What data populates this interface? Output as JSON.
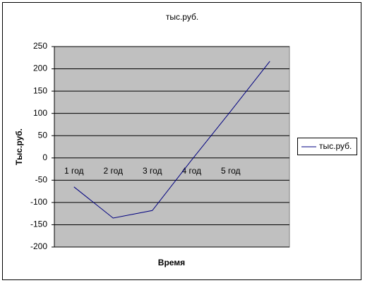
{
  "chart_data": {
    "type": "line",
    "title": "тыс.руб.",
    "x_label": "Время",
    "y_label": "Тыс.руб.",
    "categories": [
      "1 год",
      "2 год",
      "3 год",
      "4 год",
      "5 год",
      null
    ],
    "series": [
      {
        "name": "тыс.руб.",
        "color": "#000080",
        "values": [
          -65,
          -135,
          -118,
          -5,
          105,
          217
        ]
      }
    ],
    "ylim": [
      -200,
      250
    ],
    "yticks": [
      -200,
      -150,
      -100,
      -50,
      0,
      50,
      100,
      150,
      200,
      250
    ],
    "grid": true,
    "legend": "right"
  }
}
